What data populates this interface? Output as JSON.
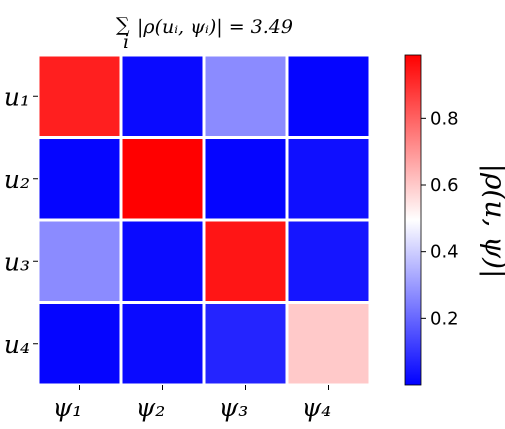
{
  "chart_data": {
    "type": "heatmap",
    "title": "∑ᵢ|ρ(uᵢ, ψᵢ)| = 3.49",
    "title_parts": {
      "sum_symbol": "∑",
      "sub": "i",
      "expr": "|ρ(uᵢ, ψᵢ)| = 3.49"
    },
    "rows": [
      "u₁",
      "u₂",
      "u₃",
      "u₄"
    ],
    "columns": [
      "ψ₁",
      "ψ₂",
      "ψ₃",
      "ψ₄"
    ],
    "values": [
      [
        0.93,
        0.02,
        0.27,
        0.01
      ],
      [
        0.01,
        0.99,
        0.01,
        0.03
      ],
      [
        0.27,
        0.02,
        0.95,
        0.04
      ],
      [
        0.01,
        0.02,
        0.07,
        0.6
      ]
    ],
    "colormap": "bwr",
    "vmin": 0.0,
    "vmax": 0.99,
    "colorbar": {
      "label": "|ρ(u, ψ)|",
      "ticks": [
        0.2,
        0.4,
        0.6,
        0.8
      ],
      "tick_labels": [
        "0.2",
        "0.4",
        "0.6",
        "0.8"
      ]
    },
    "grid": false,
    "colors": {
      "low": "#0000ff",
      "mid": "#ffffff",
      "high": "#ff0000",
      "cell_border": "#ffffff"
    }
  }
}
